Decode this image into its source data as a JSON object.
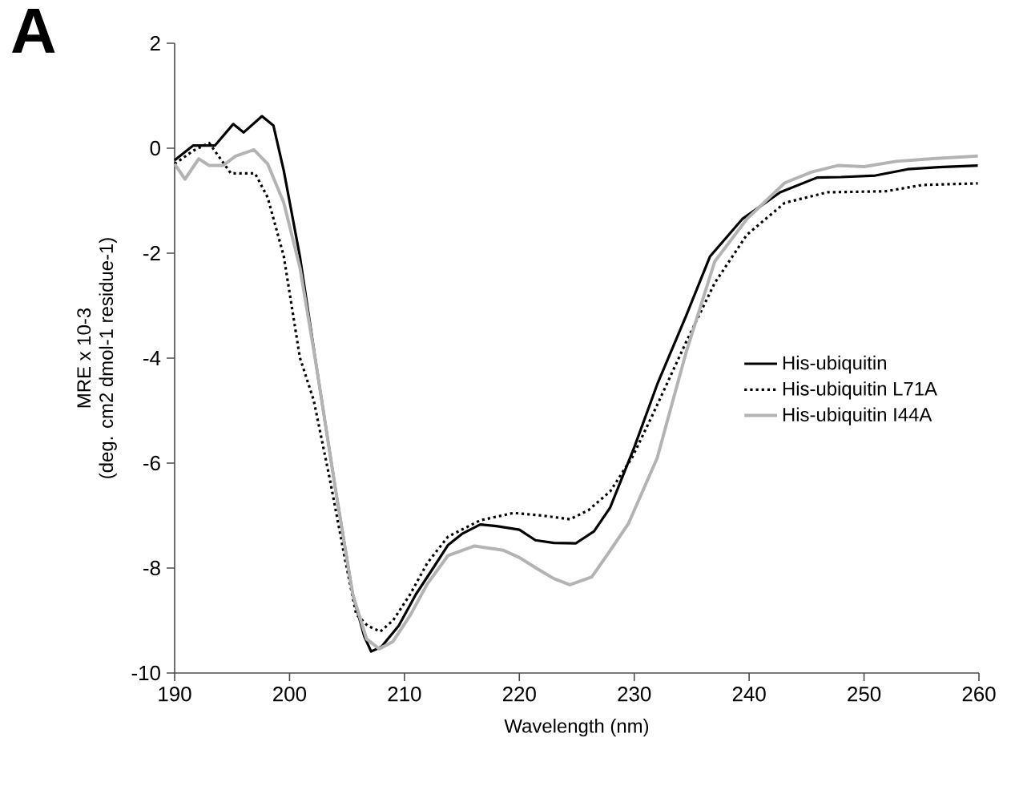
{
  "chart_data": {
    "type": "line",
    "xlabel": "Wavelength (nm)",
    "ylabel": "MRE x 10-3\n(deg. cm2 dmol-1 residue-1)",
    "annotations": [
      "A"
    ],
    "xlim": [
      190,
      260
    ],
    "xticks": [
      190,
      200,
      210,
      220,
      230,
      240,
      250,
      260
    ],
    "ylim": [
      -10,
      2
    ],
    "yticks": [
      -10,
      -8,
      -6,
      -4,
      -2,
      0,
      2
    ],
    "grid": false,
    "legend": "right",
    "marker": "none",
    "series": [
      {
        "name": "His-ubiquitin",
        "color": "#000000",
        "line_style": "solid",
        "x": [
          190,
          191.6,
          193.5,
          195.1,
          196,
          197.6,
          198.6,
          199.5,
          200.9,
          202.3,
          204,
          205.5,
          206.5,
          207.1,
          208,
          209.5,
          211,
          212.5,
          213.8,
          215,
          216.6,
          218,
          220,
          221.4,
          223,
          224.9,
          226.5,
          227.9,
          230,
          232,
          234.5,
          236.6,
          239.4,
          242.7,
          245.9,
          248,
          251,
          253.8,
          256.5,
          259.9
        ],
        "values": [
          -0.23,
          0.05,
          0.05,
          0.46,
          0.3,
          0.61,
          0.43,
          -0.43,
          -2.06,
          -4.1,
          -6.5,
          -8.5,
          -9.3,
          -9.59,
          -9.5,
          -9.1,
          -8.5,
          -8.0,
          -7.56,
          -7.35,
          -7.17,
          -7.2,
          -7.27,
          -7.47,
          -7.52,
          -7.53,
          -7.3,
          -6.85,
          -5.7,
          -4.5,
          -3.2,
          -2.06,
          -1.35,
          -0.84,
          -0.56,
          -0.55,
          -0.52,
          -0.4,
          -0.36,
          -0.33
        ]
      },
      {
        "name": "His-ubiquitin L71A",
        "color": "#000000",
        "line_style": "dotted",
        "x": [
          190,
          191.6,
          193,
          194.9,
          197,
          198.1,
          199.5,
          200.9,
          202.1,
          203.5,
          204.8,
          205.8,
          206.8,
          207.9,
          209,
          210.5,
          212,
          213.8,
          216.6,
          219.5,
          222,
          224.4,
          226,
          227.9,
          229.8,
          231.6,
          234.5,
          237,
          239.8,
          243.1,
          246.8,
          251.9,
          255.1,
          259.9
        ],
        "values": [
          -0.3,
          -0.05,
          0.1,
          -0.48,
          -0.48,
          -0.94,
          -2.06,
          -3.99,
          -4.8,
          -6.3,
          -7.8,
          -8.88,
          -9.1,
          -9.21,
          -9.0,
          -8.5,
          -7.9,
          -7.4,
          -7.09,
          -6.95,
          -7.0,
          -7.07,
          -6.9,
          -6.54,
          -5.9,
          -5.08,
          -3.7,
          -2.57,
          -1.65,
          -1.04,
          -0.84,
          -0.82,
          -0.7,
          -0.67
        ]
      },
      {
        "name": "His-ubiquitin I44A",
        "color": "#b3b3b3",
        "line_style": "solid",
        "x": [
          190,
          190.9,
          192.1,
          193,
          194.2,
          195.3,
          196.9,
          198.1,
          199.5,
          200.9,
          202.3,
          204,
          205.5,
          206.7,
          207.8,
          209,
          210.5,
          212,
          213.8,
          216.1,
          218.6,
          220,
          221.6,
          223,
          224.4,
          226.3,
          227.8,
          229.5,
          232,
          234.5,
          237,
          239.8,
          243.1,
          245.5,
          247.7,
          250,
          252.8,
          256,
          259.9
        ],
        "values": [
          -0.3,
          -0.59,
          -0.2,
          -0.33,
          -0.33,
          -0.15,
          -0.03,
          -0.3,
          -1.04,
          -2.27,
          -4.1,
          -6.5,
          -8.5,
          -9.35,
          -9.54,
          -9.4,
          -8.9,
          -8.3,
          -7.76,
          -7.58,
          -7.66,
          -7.8,
          -8.02,
          -8.2,
          -8.32,
          -8.17,
          -7.7,
          -7.15,
          -5.9,
          -3.9,
          -2.16,
          -1.35,
          -0.66,
          -0.45,
          -0.33,
          -0.35,
          -0.25,
          -0.2,
          -0.15
        ]
      }
    ]
  }
}
